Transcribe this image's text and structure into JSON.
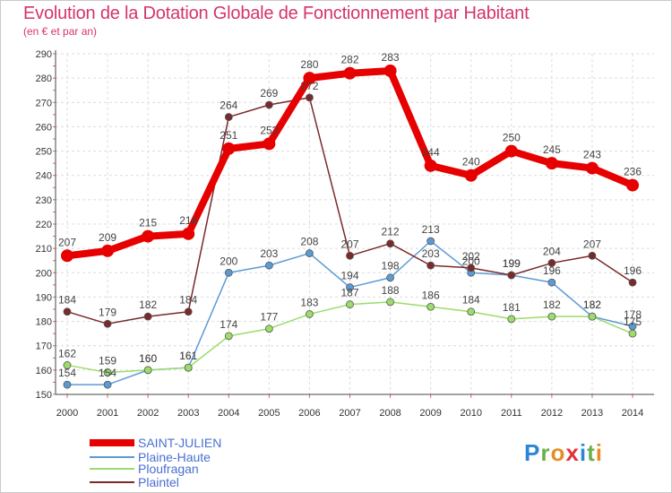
{
  "page": {
    "title": "Evolution de la Dotation Globale de Fonctionnement par Habitant",
    "subtitle": "(en € et par an)"
  },
  "logo": {
    "text": "Proxiti",
    "letters": [
      {
        "ch": "P",
        "color": "#2b86d6"
      },
      {
        "ch": "r",
        "color": "#6ab04c"
      },
      {
        "ch": "o",
        "color": "#e58e26"
      },
      {
        "ch": "x",
        "color": "#e0313c"
      },
      {
        "ch": "i",
        "color": "#2b86d6"
      },
      {
        "ch": "t",
        "color": "#6ab04c"
      },
      {
        "ch": "i",
        "color": "#e58e26"
      }
    ]
  },
  "chart_data": {
    "type": "line",
    "title": "Evolution de la Dotation Globale de Fonctionnement par Habitant",
    "subtitle": "(en € et par an)",
    "x": [
      "2000",
      "2001",
      "2002",
      "2003",
      "2004",
      "2005",
      "2006",
      "2007",
      "2008",
      "2009",
      "2010",
      "2011",
      "2012",
      "2013",
      "2014"
    ],
    "ylim": [
      150,
      290
    ],
    "yticks": [
      150,
      160,
      170,
      180,
      190,
      200,
      210,
      220,
      230,
      240,
      250,
      260,
      270,
      280,
      290
    ],
    "grid": true,
    "legend_position": "bottom-left",
    "series": [
      {
        "name": "SAINT-JULIEN",
        "color": "#e60000",
        "values": [
          207,
          209,
          215,
          216,
          251,
          253,
          280,
          282,
          283,
          244,
          240,
          250,
          245,
          243,
          236
        ]
      },
      {
        "name": "Plaine-Haute",
        "color": "#5b9bd5",
        "values": [
          154,
          154,
          160,
          161,
          200,
          203,
          208,
          194,
          198,
          213,
          200,
          199,
          196,
          182,
          178
        ]
      },
      {
        "name": "Ploufragan",
        "color": "#9bdc6a",
        "values": [
          162,
          159,
          160,
          161,
          174,
          177,
          183,
          187,
          188,
          186,
          184,
          181,
          182,
          182,
          175
        ]
      },
      {
        "name": "Plaintel",
        "color": "#7a2a2a",
        "values": [
          184,
          179,
          182,
          184,
          264,
          269,
          272,
          207,
          212,
          203,
          202,
          199,
          204,
          207,
          196
        ]
      }
    ]
  }
}
